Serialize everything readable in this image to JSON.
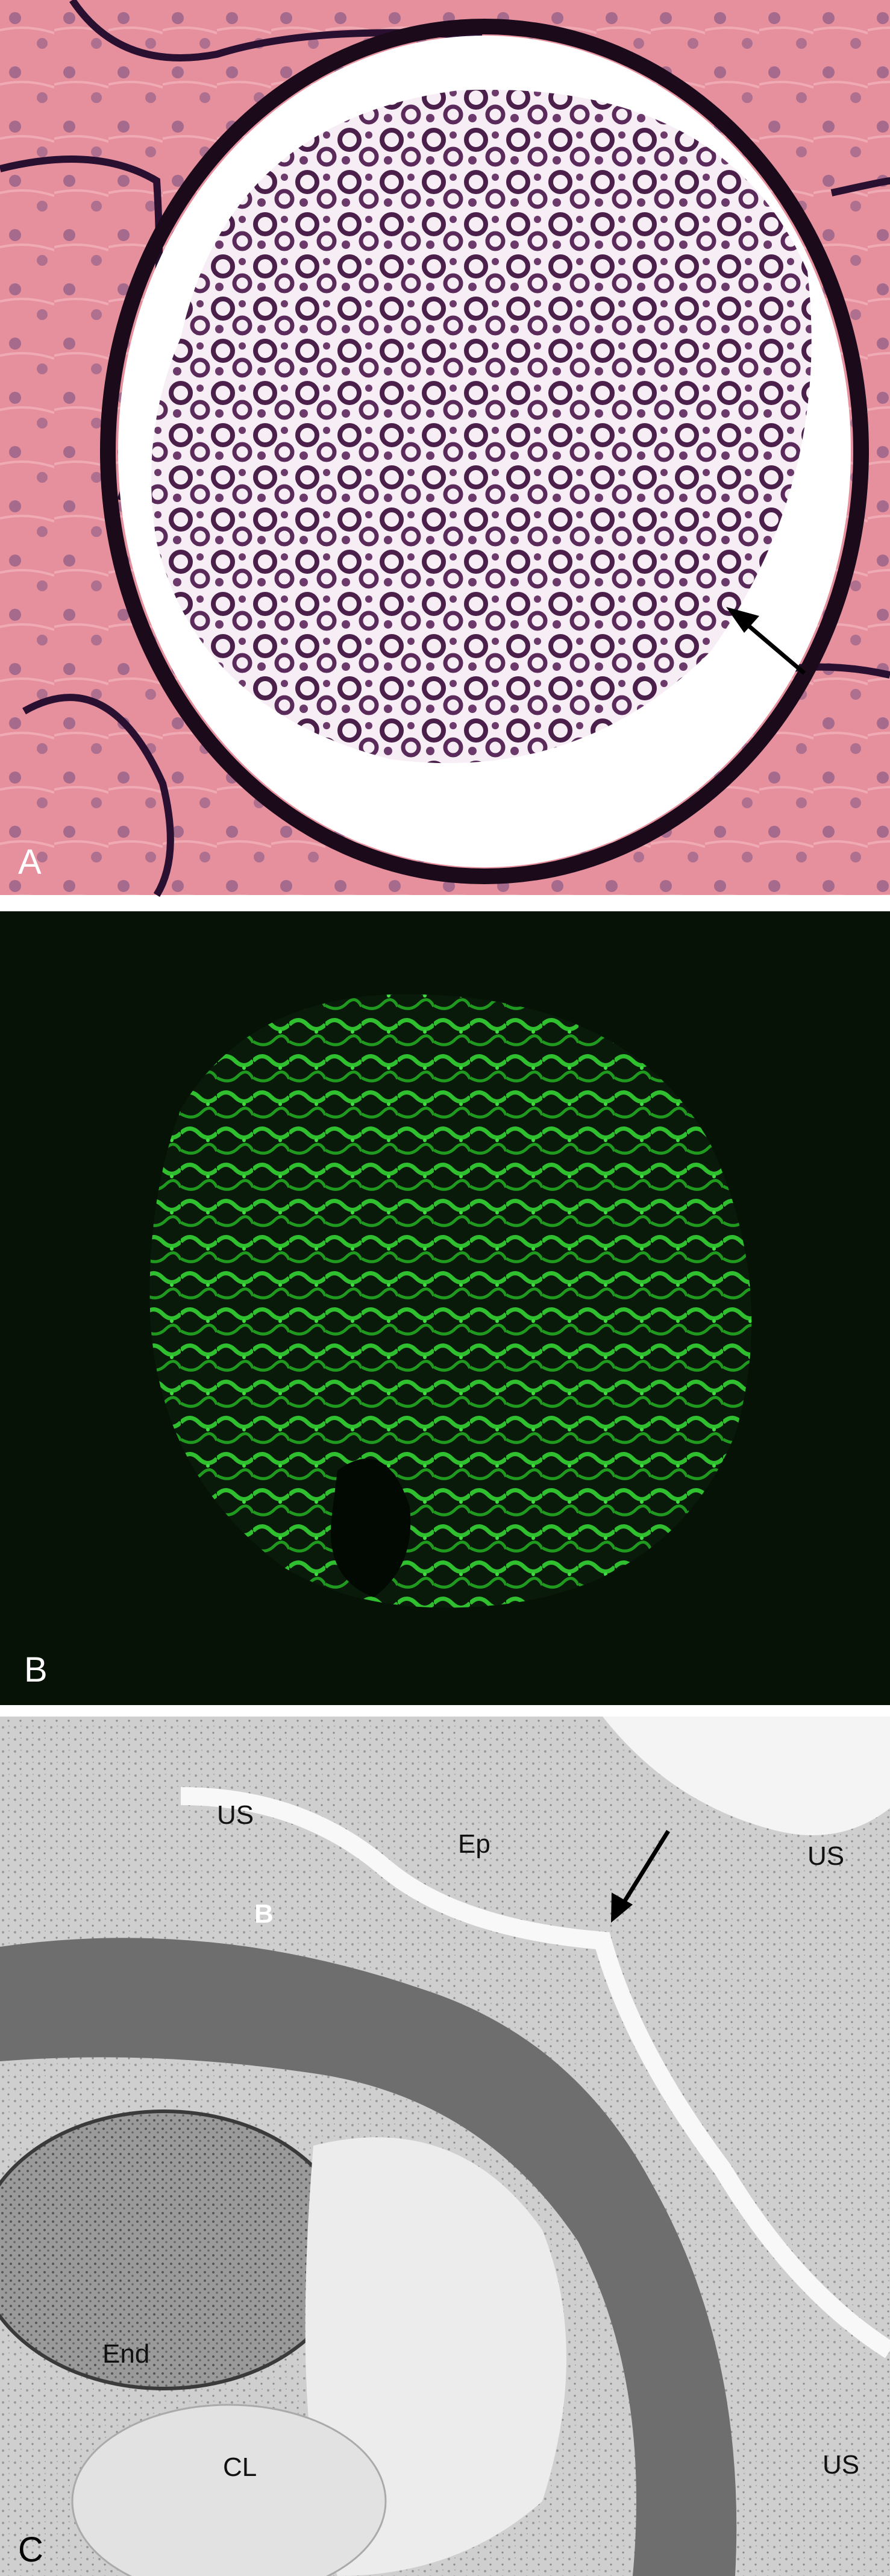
{
  "panels": [
    {
      "label": "A"
    },
    {
      "label": "B"
    },
    {
      "label": "C",
      "annotations": [
        "US",
        "Ep",
        "US",
        "B",
        "End",
        "CL",
        "US"
      ]
    }
  ]
}
